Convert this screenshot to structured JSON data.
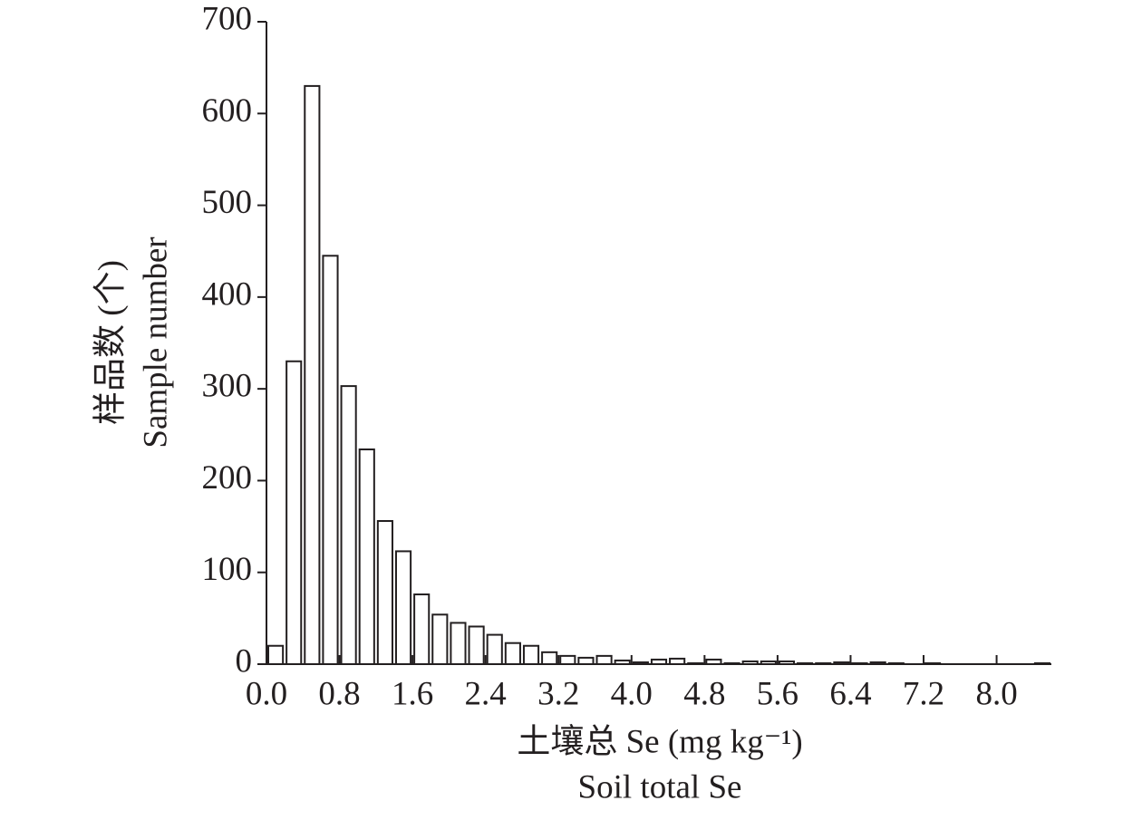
{
  "chart_data": {
    "type": "histogram",
    "ylabel": [
      "样品数 (个)",
      "Sample number"
    ],
    "xlabel": [
      "土壤总 Se (mg kg⁻¹)",
      "Soil total Se"
    ],
    "bins": [
      0,
      0.2,
      0.4,
      0.6,
      0.8,
      1.0,
      1.2,
      1.4,
      1.6,
      1.8,
      2.0,
      2.2,
      2.4,
      2.6,
      2.8,
      3.0,
      3.2,
      3.4,
      3.6,
      3.8,
      4.0,
      4.2,
      4.4,
      4.6,
      4.8,
      5.0,
      5.2,
      5.4,
      5.6,
      5.8,
      6.0,
      6.2,
      6.4,
      6.6,
      6.8,
      7.0,
      7.2,
      7.4,
      7.6,
      7.8,
      8.0,
      8.2,
      8.4,
      8.6
    ],
    "counts": [
      20,
      330,
      630,
      445,
      303,
      234,
      156,
      123,
      76,
      54,
      45,
      41,
      32,
      23,
      20,
      13,
      9,
      7,
      9,
      4,
      2,
      5,
      6,
      1,
      5,
      1,
      3,
      3,
      3,
      1,
      1,
      2,
      1,
      2,
      1,
      0,
      1,
      0,
      0,
      0,
      0,
      0,
      1
    ],
    "color": "#ffffff",
    "edgecolor": "#231f20",
    "xlim": [
      0,
      8.6
    ],
    "ylim": [
      0,
      700
    ],
    "xticks": [
      {
        "value": 0,
        "label": "0.0"
      },
      0.8,
      1.6,
      2.4,
      3.2,
      {
        "value": 4,
        "label": "4.0"
      },
      4.8,
      5.6,
      6.4,
      7.2,
      {
        "value": 8,
        "label": "8.0"
      }
    ],
    "yticks": [
      0,
      100,
      200,
      300,
      400,
      500,
      600,
      700
    ]
  }
}
